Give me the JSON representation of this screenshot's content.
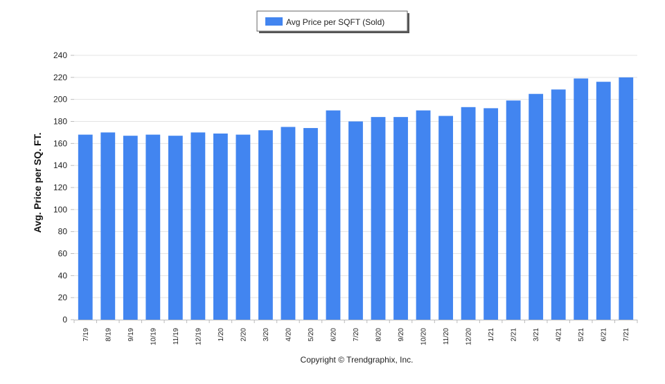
{
  "chart_data": {
    "type": "bar",
    "legend": {
      "label": "Avg Price per SQFT (Sold)",
      "placement": "top-center"
    },
    "ylabel": "Avg. Price per SQ. FT.",
    "xlabel": "",
    "ylim": [
      0,
      240
    ],
    "yticks": [
      0,
      20,
      40,
      60,
      80,
      100,
      120,
      140,
      160,
      180,
      200,
      220,
      240
    ],
    "grid": true,
    "categories": [
      "7/19",
      "8/19",
      "9/19",
      "10/19",
      "11/19",
      "12/19",
      "1/20",
      "2/20",
      "3/20",
      "4/20",
      "5/20",
      "6/20",
      "7/20",
      "8/20",
      "9/20",
      "10/20",
      "11/20",
      "12/20",
      "1/21",
      "2/21",
      "3/21",
      "4/21",
      "5/21",
      "6/21",
      "7/21"
    ],
    "series": [
      {
        "name": "Avg Price per SQFT (Sold)",
        "color": "#4285f0",
        "values": [
          168,
          170,
          167,
          168,
          167,
          170,
          169,
          168,
          172,
          175,
          174,
          190,
          180,
          184,
          184,
          190,
          185,
          193,
          192,
          199,
          205,
          209,
          219,
          216,
          220
        ]
      }
    ],
    "footer": "Copyright © Trendgraphix, Inc."
  }
}
